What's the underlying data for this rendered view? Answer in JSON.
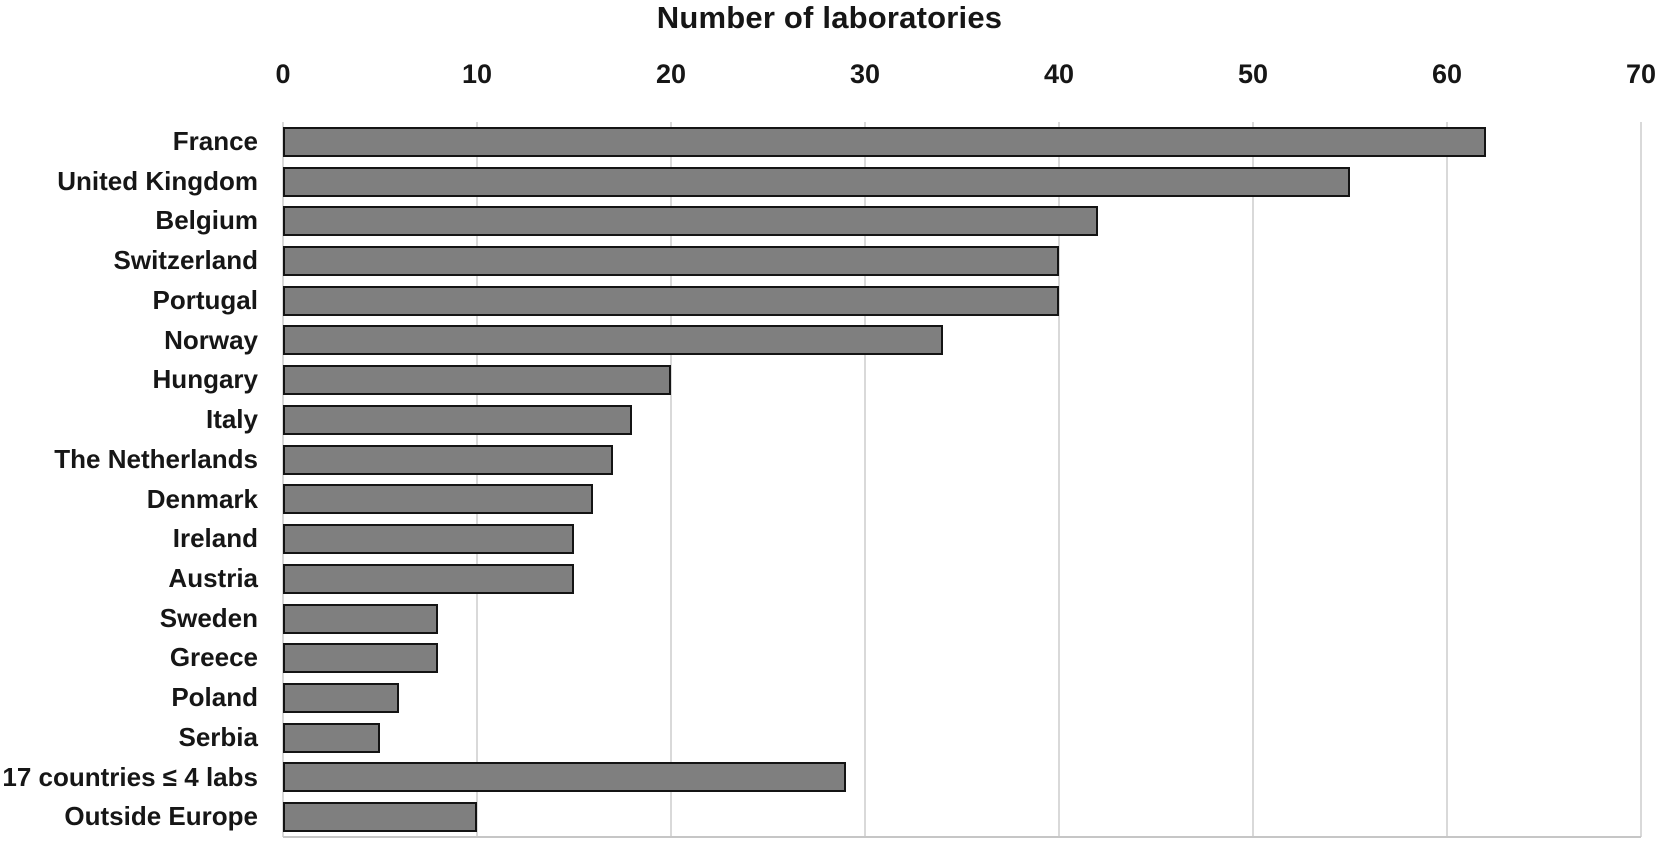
{
  "chart_data": {
    "type": "bar",
    "orientation": "horizontal",
    "title": "Number of laboratories",
    "xlabel": "",
    "ylabel": "",
    "axis_position": "top",
    "xlim": [
      0,
      70
    ],
    "x_ticks": [
      0,
      10,
      20,
      30,
      40,
      50,
      60,
      70
    ],
    "grid": "vertical gridlines on",
    "legend": "none",
    "categories": [
      "France",
      "United Kingdom",
      "Belgium",
      "Switzerland",
      "Portugal",
      "Norway",
      "Hungary",
      "Italy",
      "The Netherlands",
      "Denmark",
      "Ireland",
      "Austria",
      "Sweden",
      "Greece",
      "Poland",
      "Serbia",
      "17 countries ≤ 4 labs",
      "Outside Europe"
    ],
    "values": [
      62,
      55,
      42,
      40,
      40,
      34,
      20,
      18,
      17,
      16,
      15,
      15,
      8,
      8,
      6,
      5,
      29,
      10
    ],
    "colors": {
      "bar_fill": "#7F7F7F",
      "bar_border": "#141414",
      "gridline": "#D9D9D9",
      "baseline": "#C6C6C6",
      "text": "#161616",
      "background": "#FFFFFF"
    }
  }
}
